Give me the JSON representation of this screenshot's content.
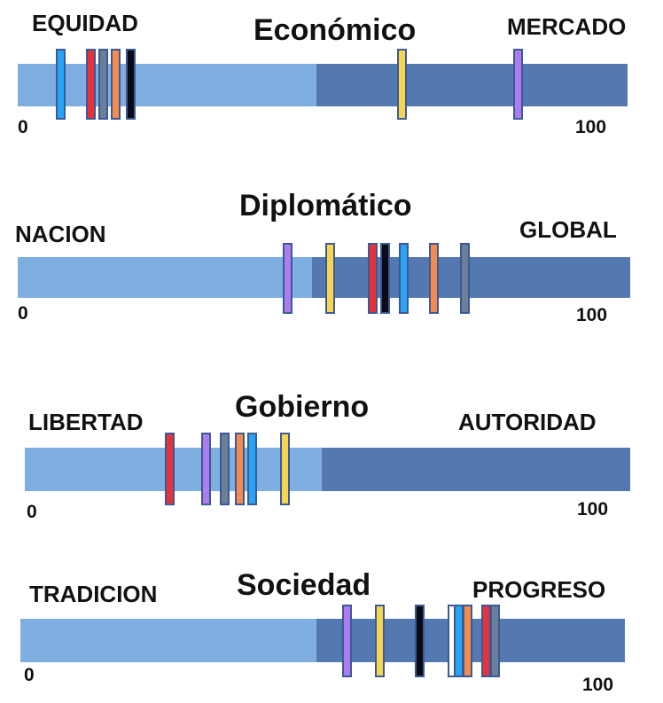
{
  "colors": {
    "left_segment": "#7faee0",
    "right_segment": "#5478b0",
    "marker_border": "#3b5a95"
  },
  "chart_data": [
    {
      "type": "scale",
      "title": "Económico",
      "left_label": "EQUIDAD",
      "right_label": "MERCADO",
      "min_label": "0",
      "max_label": "100",
      "range": [
        0,
        100
      ],
      "midpoint": 49,
      "markers": [
        {
          "color": "#29a3f5",
          "value": 7
        },
        {
          "color": "#e8323a",
          "value": 12
        },
        {
          "color": "#6b7f99",
          "value": 14
        },
        {
          "color": "#f58c4c",
          "value": 16
        },
        {
          "color": "#0a0a14",
          "value": 18.5
        },
        {
          "color": "#f8d54e",
          "value": 63
        },
        {
          "color": "#ad7df0",
          "value": 82
        }
      ]
    },
    {
      "type": "scale",
      "title": "Diplomático",
      "left_label": "NACION",
      "right_label": "GLOBAL",
      "min_label": "0",
      "max_label": "100",
      "range": [
        0,
        100
      ],
      "midpoint": 48,
      "markers": [
        {
          "color": "#ad7df0",
          "value": 44
        },
        {
          "color": "#f8d54e",
          "value": 51
        },
        {
          "color": "#e8323a",
          "value": 58
        },
        {
          "color": "#0a0a14",
          "value": 60
        },
        {
          "color": "#29a3f5",
          "value": 63
        },
        {
          "color": "#f58c4c",
          "value": 68
        },
        {
          "color": "#6b7f99",
          "value": 73
        }
      ]
    },
    {
      "type": "scale",
      "title": "Gobierno",
      "left_label": "LIBERTAD",
      "right_label": "AUTORIDAD",
      "min_label": "0",
      "max_label": "100",
      "range": [
        0,
        100
      ],
      "midpoint": 49,
      "markers": [
        {
          "color": "#e8323a",
          "value": 24
        },
        {
          "color": "#ad7df0",
          "value": 30
        },
        {
          "color": "#6b7f99",
          "value": 33
        },
        {
          "color": "#f58c4c",
          "value": 35.5
        },
        {
          "color": "#29a3f5",
          "value": 37.5
        },
        {
          "color": "#f8d54e",
          "value": 43
        }
      ]
    },
    {
      "type": "scale",
      "title": "Sociedad",
      "left_label": "TRADICION",
      "right_label": "PROGRESO",
      "min_label": "0",
      "max_label": "100",
      "range": [
        0,
        100
      ],
      "midpoint": 49,
      "markers": [
        {
          "color": "#ad7df0",
          "value": 54
        },
        {
          "color": "#f8d54e",
          "value": 59.5
        },
        {
          "color": "#0a0a14",
          "value": 66
        },
        {
          "color": "#ffffff",
          "value": 71.5
        },
        {
          "color": "#29a3f5",
          "value": 72.5
        },
        {
          "color": "#f58c4c",
          "value": 74
        },
        {
          "color": "#e8323a",
          "value": 77
        },
        {
          "color": "#6b7f99",
          "value": 78.5
        }
      ]
    }
  ]
}
